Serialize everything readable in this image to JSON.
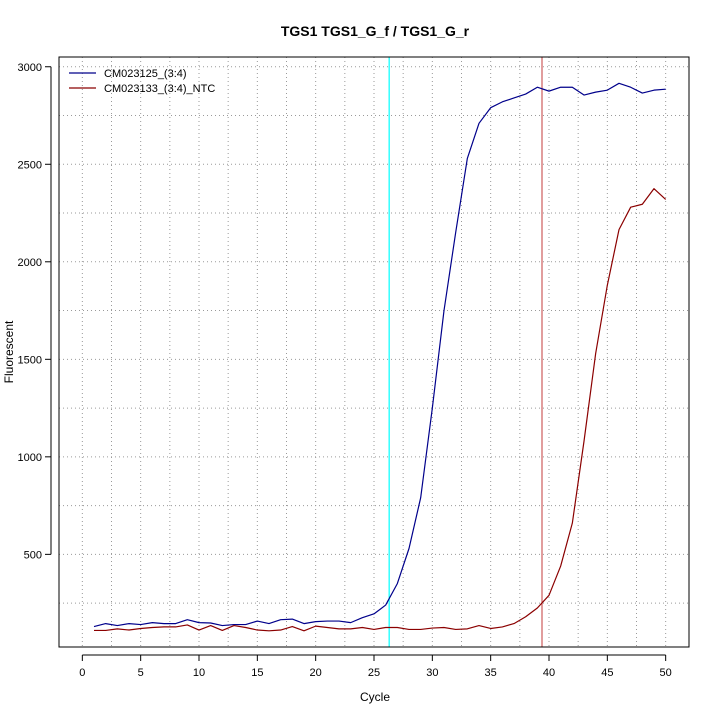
{
  "chart_data": {
    "type": "line",
    "title": "TGS1  TGS1_G_f / TGS1_G_r",
    "xlabel": "Cycle",
    "ylabel": "Fluorescent",
    "xlim": [
      -2,
      52
    ],
    "ylim": [
      25,
      3050
    ],
    "x_ticks": [
      0,
      5,
      10,
      15,
      20,
      25,
      30,
      35,
      40,
      45,
      50
    ],
    "y_ticks": [
      500,
      1000,
      1500,
      2000,
      2500,
      3000
    ],
    "x_grid": [
      0,
      2.5,
      5,
      7.5,
      10,
      12.5,
      15,
      17.5,
      20,
      22.5,
      25,
      27.5,
      30,
      32.5,
      35,
      37.5,
      40,
      42.5,
      45,
      47.5,
      50
    ],
    "y_grid": [
      250,
      500,
      750,
      1000,
      1250,
      1500,
      1750,
      2000,
      2250,
      2500,
      2750,
      3000
    ],
    "grid": true,
    "legend_position": "top-left",
    "x": [
      1,
      2,
      3,
      4,
      5,
      6,
      7,
      8,
      9,
      10,
      11,
      12,
      13,
      14,
      15,
      16,
      17,
      18,
      19,
      20,
      21,
      22,
      23,
      24,
      25,
      26,
      27,
      28,
      29,
      30,
      31,
      32,
      33,
      34,
      35,
      36,
      37,
      38,
      39,
      40,
      41,
      42,
      43,
      44,
      45,
      46,
      47,
      48,
      49,
      50
    ],
    "series": [
      {
        "name": "CM023125_(3:4)",
        "color": "#00008b",
        "values": [
          130,
          145,
          135,
          145,
          140,
          150,
          145,
          145,
          165,
          150,
          148,
          135,
          140,
          140,
          158,
          145,
          165,
          168,
          145,
          155,
          158,
          158,
          150,
          175,
          195,
          240,
          350,
          530,
          790,
          1250,
          1750,
          2150,
          2530,
          2710,
          2790,
          2820,
          2840,
          2860,
          2895,
          2875,
          2895,
          2895,
          2855,
          2870,
          2880,
          2915,
          2895,
          2865,
          2880,
          2885
        ]
      },
      {
        "name": "CM023133_(3:4)_NTC",
        "color": "#8b0000",
        "values": [
          110,
          110,
          118,
          112,
          120,
          125,
          128,
          128,
          138,
          112,
          135,
          110,
          135,
          125,
          112,
          108,
          112,
          130,
          108,
          132,
          125,
          118,
          118,
          125,
          115,
          125,
          125,
          115,
          115,
          122,
          125,
          115,
          118,
          135,
          120,
          128,
          145,
          180,
          225,
          290,
          440,
          660,
          1080,
          1530,
          1880,
          2165,
          2280,
          2295,
          2375,
          2320
        ]
      }
    ],
    "reference_lines": [
      {
        "axis": "x",
        "value": 26.3,
        "color": "#00ffff"
      },
      {
        "axis": "x",
        "value": 39.4,
        "color": "#cd5c5c"
      }
    ]
  }
}
